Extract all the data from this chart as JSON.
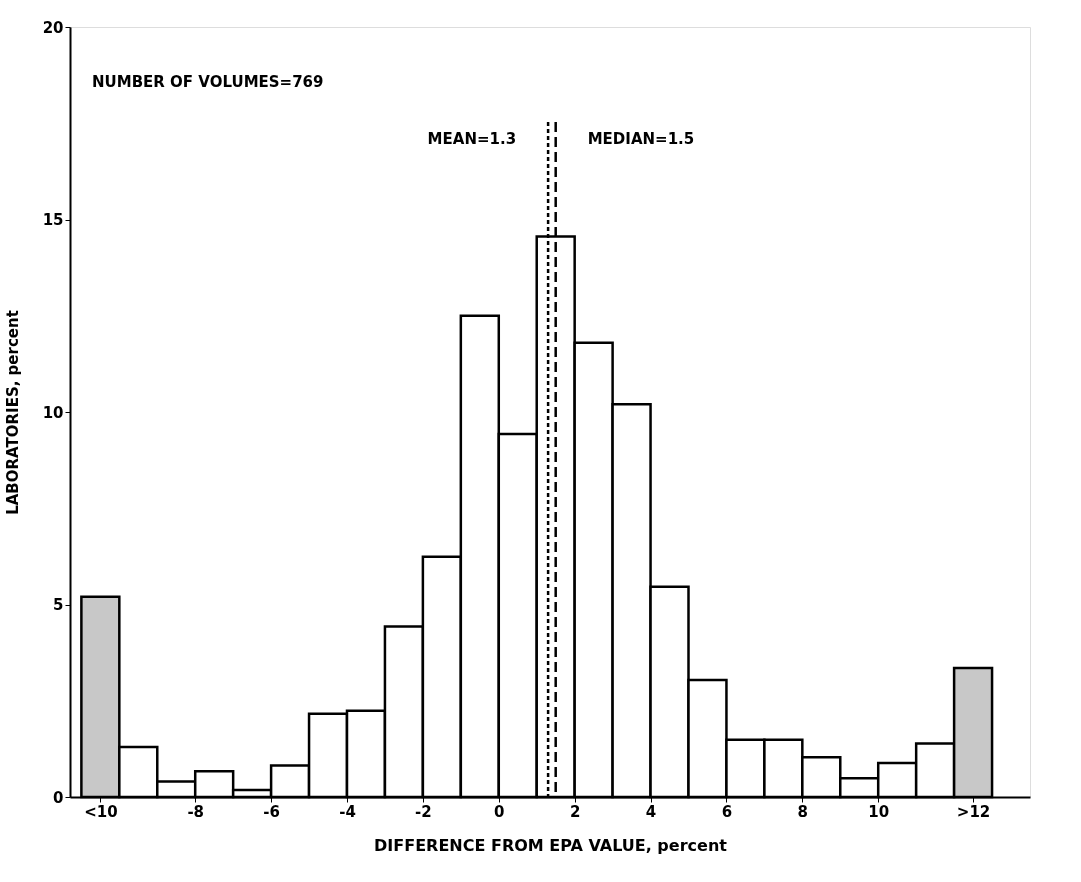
{
  "chart_data": {
    "type": "histogram",
    "xlabel": "DIFFERENCE FROM EPA VALUE, percent",
    "ylabel": "LABORATORIES, percent",
    "bins": [
      -11,
      -10,
      -9,
      -8,
      -7,
      -6,
      -5,
      -4,
      -3,
      -2,
      -1,
      0,
      1,
      2,
      3,
      4,
      5,
      6,
      7,
      8,
      9,
      10,
      11,
      12,
      13
    ],
    "values": [
      5.2,
      1.3,
      0.4,
      0.67,
      0.18,
      0.82,
      2.16,
      2.24,
      4.43,
      6.24,
      12.5,
      9.43,
      14.56,
      11.8,
      10.2,
      5.46,
      3.04,
      1.49,
      1.49,
      1.03,
      0.49,
      0.88,
      1.39,
      3.35
    ],
    "colors": [
      "#c8c8c8",
      "#ffffff",
      "#ffffff",
      "#ffffff",
      "#ffffff",
      "#ffffff",
      "#ffffff",
      "#ffffff",
      "#ffffff",
      "#ffffff",
      "#ffffff",
      "#ffffff",
      "#ffffff",
      "#ffffff",
      "#ffffff",
      "#ffffff",
      "#ffffff",
      "#ffffff",
      "#ffffff",
      "#ffffff",
      "#ffffff",
      "#ffffff",
      "#ffffff",
      "#c8c8c8"
    ],
    "xlim": [
      -11.3,
      14
    ],
    "ylim": [
      0,
      20
    ],
    "xticks": [
      {
        "value": -10.5,
        "label": "<10"
      },
      -8,
      -6,
      -4,
      -2,
      0,
      2,
      4,
      6,
      8,
      10,
      {
        "value": 12.5,
        "label": ">12"
      }
    ],
    "yticks": [
      0,
      5,
      10,
      15,
      20
    ],
    "ref_lines": [
      {
        "axis": "x",
        "value": 1.3,
        "label": "MEAN=1.3",
        "line_style": "dotted",
        "color": "#000000"
      },
      {
        "axis": "x",
        "value": 1.5,
        "label": "MEDIAN=1.5",
        "line_style": "dashed",
        "color": "#000000"
      }
    ],
    "annotations": [
      "NUMBER OF VOLUMES=769"
    ],
    "grid": false
  }
}
